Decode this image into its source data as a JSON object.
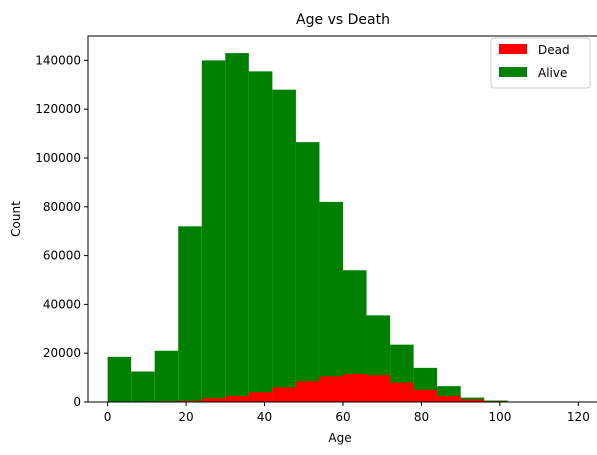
{
  "chart_data": {
    "type": "bar",
    "title": "Age vs Death",
    "xlabel": "Age",
    "ylabel": "Count",
    "xlim": [
      -5,
      125
    ],
    "ylim": [
      0,
      150000
    ],
    "xticks": [
      0,
      20,
      40,
      60,
      80,
      100,
      120
    ],
    "yticks": [
      0,
      20000,
      40000,
      60000,
      80000,
      100000,
      120000,
      140000
    ],
    "legend_position": "top-right",
    "bin_edges": [
      0,
      6,
      12,
      18,
      24,
      30,
      36,
      42,
      48,
      54,
      60,
      66,
      72,
      78,
      84,
      90,
      96,
      102,
      108,
      114,
      120
    ],
    "series": [
      {
        "name": "Alive",
        "color": "#008000",
        "values": [
          18500,
          12500,
          21000,
          72000,
          140000,
          143000,
          135500,
          128000,
          106500,
          82000,
          54000,
          35500,
          23500,
          14000,
          6500,
          1800,
          600,
          0,
          0,
          0
        ]
      },
      {
        "name": "Dead",
        "color": "#ff0000",
        "values": [
          0,
          0,
          300,
          500,
          1500,
          2500,
          4000,
          6000,
          8500,
          10500,
          11500,
          11000,
          8000,
          5000,
          2500,
          1000,
          300,
          0,
          0,
          0
        ]
      }
    ]
  }
}
